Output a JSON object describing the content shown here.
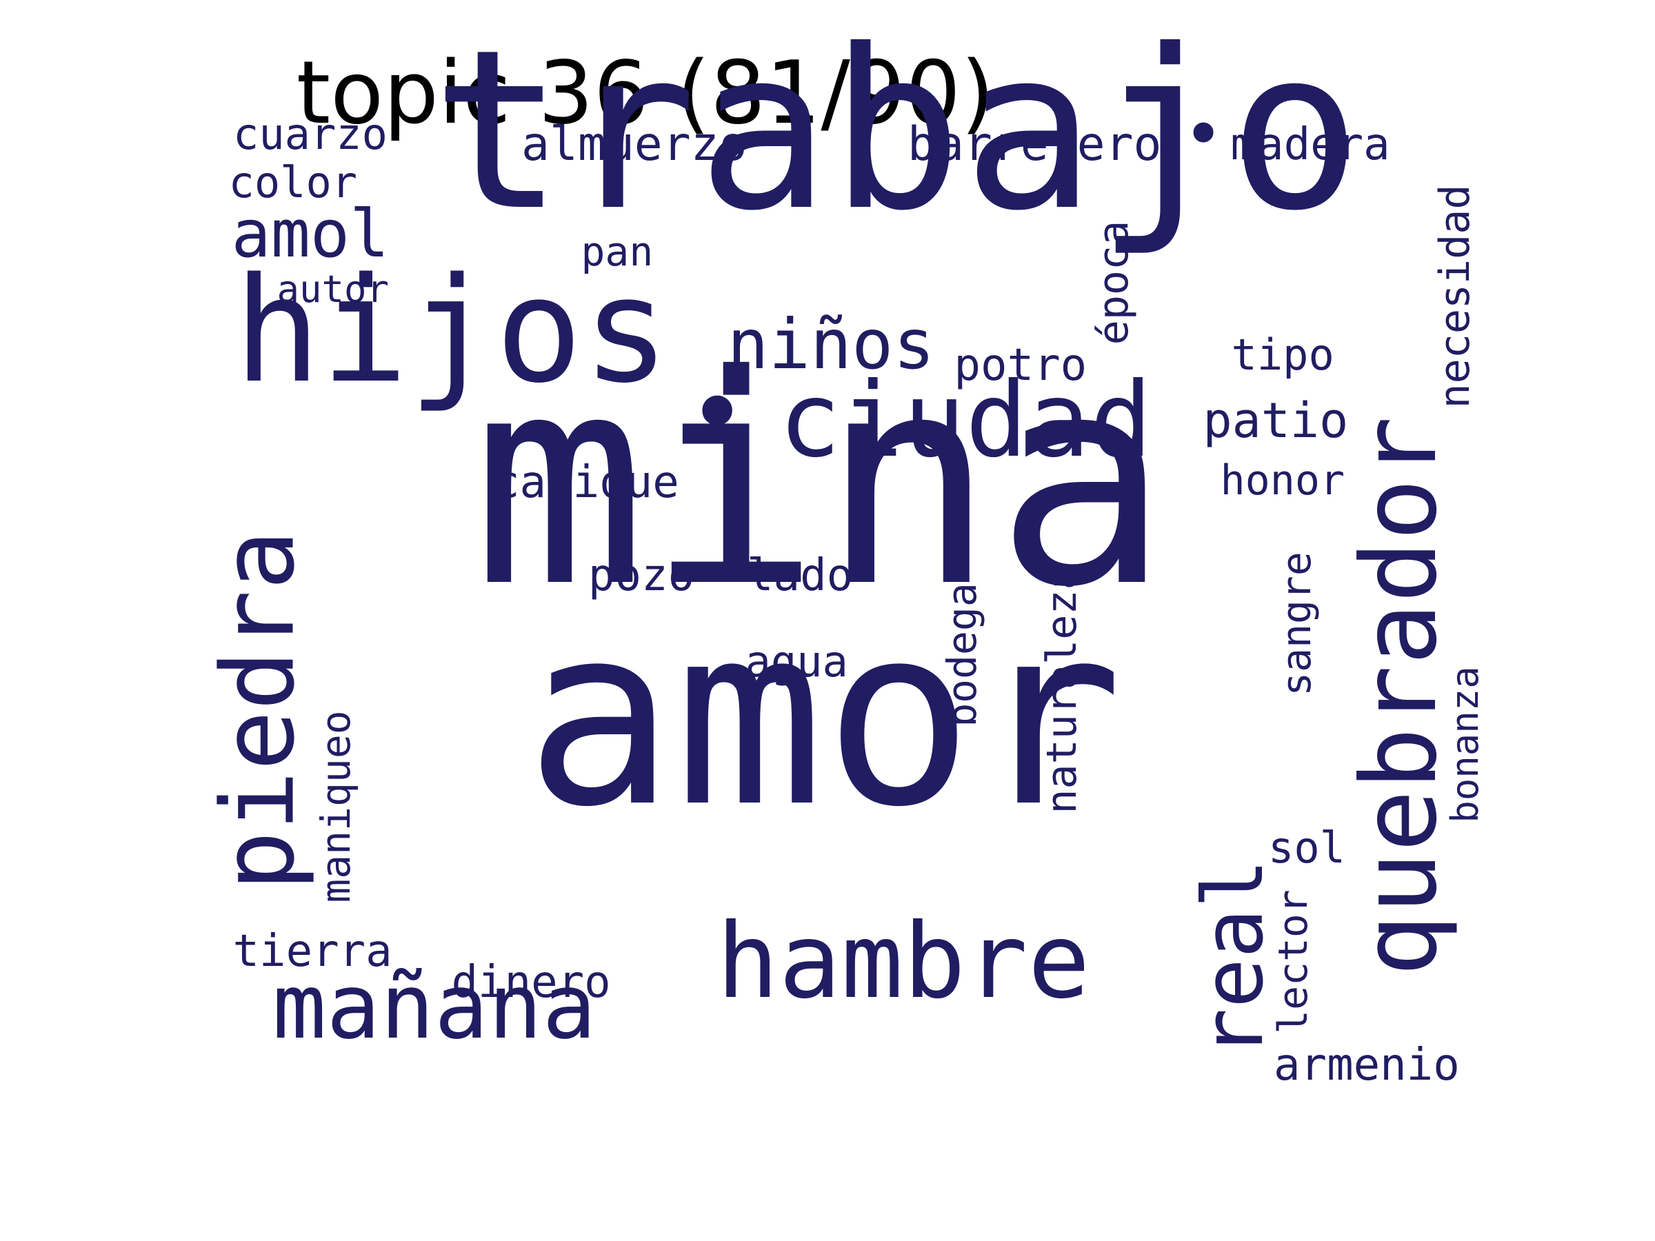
{
  "title": "topic 36 (81/90)",
  "word_color": "#211d62",
  "title_color": "#000000",
  "words": [
    {
      "id": "mina",
      "text": "mina",
      "orientation": "horizontal"
    },
    {
      "id": "amor",
      "text": "amor",
      "orientation": "horizontal"
    },
    {
      "id": "trabajo",
      "text": "trabajo",
      "orientation": "horizontal"
    },
    {
      "id": "hijos",
      "text": "hijos",
      "orientation": "horizontal"
    },
    {
      "id": "quebrador",
      "text": "quebrador",
      "orientation": "vertical"
    },
    {
      "id": "piedra",
      "text": "piedra",
      "orientation": "vertical"
    },
    {
      "id": "ciudad",
      "text": "ciudad",
      "orientation": "horizontal"
    },
    {
      "id": "hambre",
      "text": "hambre",
      "orientation": "horizontal"
    },
    {
      "id": "manana",
      "text": "mañana",
      "orientation": "horizontal"
    },
    {
      "id": "real",
      "text": "real",
      "orientation": "vertical"
    },
    {
      "id": "ninos",
      "text": "niños",
      "orientation": "horizontal"
    },
    {
      "id": "amol",
      "text": "amol",
      "orientation": "horizontal"
    },
    {
      "id": "patio",
      "text": "patio",
      "orientation": "horizontal"
    },
    {
      "id": "almuerzo",
      "text": "almuerzo",
      "orientation": "horizontal"
    },
    {
      "id": "barretero",
      "text": "barretero",
      "orientation": "horizontal"
    },
    {
      "id": "madera",
      "text": "madera",
      "orientation": "horizontal"
    },
    {
      "id": "cuarzo",
      "text": "cuarzo",
      "orientation": "horizontal"
    },
    {
      "id": "color",
      "text": "color",
      "orientation": "horizontal"
    },
    {
      "id": "autor",
      "text": "autor",
      "orientation": "horizontal"
    },
    {
      "id": "pan",
      "text": "pan",
      "orientation": "horizontal"
    },
    {
      "id": "epoca",
      "text": "época",
      "orientation": "vertical"
    },
    {
      "id": "necesidad",
      "text": "necesidad",
      "orientation": "vertical"
    },
    {
      "id": "tipo",
      "text": "tipo",
      "orientation": "horizontal"
    },
    {
      "id": "potro",
      "text": "potro",
      "orientation": "horizontal"
    },
    {
      "id": "honor",
      "text": "honor",
      "orientation": "horizontal"
    },
    {
      "id": "cacique",
      "text": "cacique",
      "orientation": "horizontal"
    },
    {
      "id": "pozo",
      "text": "pozo",
      "orientation": "horizontal"
    },
    {
      "id": "lado",
      "text": "lado",
      "orientation": "horizontal"
    },
    {
      "id": "agua",
      "text": "agua",
      "orientation": "horizontal"
    },
    {
      "id": "naturaleza",
      "text": "naturaleza",
      "orientation": "vertical"
    },
    {
      "id": "bodega",
      "text": "bodega",
      "orientation": "vertical"
    },
    {
      "id": "sangre",
      "text": "sangre",
      "orientation": "vertical"
    },
    {
      "id": "bonanza",
      "text": "bonanza",
      "orientation": "vertical"
    },
    {
      "id": "maniqueo",
      "text": "maniqueo",
      "orientation": "vertical"
    },
    {
      "id": "sol",
      "text": "sol",
      "orientation": "horizontal"
    },
    {
      "id": "lector",
      "text": "lector",
      "orientation": "vertical"
    },
    {
      "id": "tierra",
      "text": "tierra",
      "orientation": "horizontal"
    },
    {
      "id": "dinero",
      "text": "dinero",
      "orientation": "horizontal"
    },
    {
      "id": "armenio",
      "text": "armenio",
      "orientation": "horizontal"
    },
    {
      "id": "dot_trabajo",
      "text": "•",
      "orientation": "horizontal"
    },
    {
      "id": "dot_ciudad",
      "text": "•",
      "orientation": "horizontal"
    }
  ]
}
